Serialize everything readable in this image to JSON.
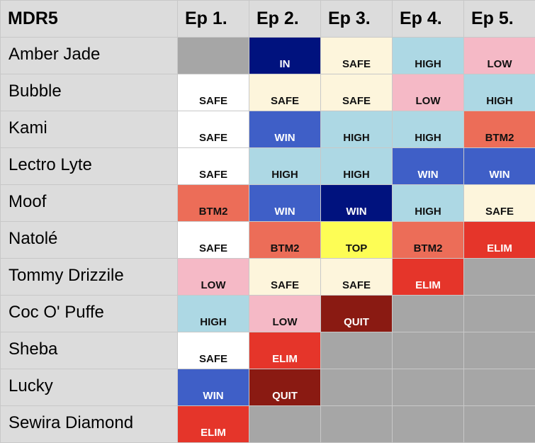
{
  "header": {
    "title": "MDR5",
    "episodes": [
      "Ep 1.",
      "Ep 2.",
      "Ep 3.",
      "Ep 4.",
      "Ep 5."
    ]
  },
  "rows": [
    {
      "name": "Amber Jade",
      "cells": [
        {
          "color": "#a6a6a6"
        },
        {
          "label": "IN",
          "color": "#00127e"
        },
        {
          "label": "SAFE",
          "color": "#fdf5dc"
        },
        {
          "label": "HIGH",
          "color": "#add8e4"
        },
        {
          "label": "LOW",
          "color": "#f5b9c6"
        }
      ]
    },
    {
      "name": "Bubble",
      "cells": [
        {
          "label": "SAFE",
          "color": "#ffffff"
        },
        {
          "label": "SAFE",
          "color": "#fdf5dc"
        },
        {
          "label": "SAFE",
          "color": "#fdf5dc"
        },
        {
          "label": "LOW",
          "color": "#f5b9c6"
        },
        {
          "label": "HIGH",
          "color": "#add8e4"
        }
      ]
    },
    {
      "name": "Kami",
      "cells": [
        {
          "label": "SAFE",
          "color": "#ffffff"
        },
        {
          "label": "WIN",
          "color": "#3f5fc7"
        },
        {
          "label": "HIGH",
          "color": "#add8e4"
        },
        {
          "label": "HIGH",
          "color": "#add8e4"
        },
        {
          "label": "BTM2",
          "color": "#ec6d58"
        }
      ]
    },
    {
      "name": "Lectro Lyte",
      "cells": [
        {
          "label": "SAFE",
          "color": "#ffffff"
        },
        {
          "label": "HIGH",
          "color": "#add8e4"
        },
        {
          "label": "HIGH",
          "color": "#add8e4"
        },
        {
          "label": "WIN",
          "color": "#3f5fc7"
        },
        {
          "label": "WIN",
          "color": "#3f5fc7"
        }
      ]
    },
    {
      "name": "Moof",
      "cells": [
        {
          "label": "BTM2",
          "color": "#ec6d58"
        },
        {
          "label": "WIN",
          "color": "#3f5fc7"
        },
        {
          "label": "WIN",
          "color": "#00127e"
        },
        {
          "label": "HIGH",
          "color": "#add8e4"
        },
        {
          "label": "SAFE",
          "color": "#fdf5dc"
        }
      ]
    },
    {
      "name": "Natolé",
      "cells": [
        {
          "label": "SAFE",
          "color": "#ffffff"
        },
        {
          "label": "BTM2",
          "color": "#ec6d58"
        },
        {
          "label": "TOP",
          "color": "#fdfd55"
        },
        {
          "label": "BTM2",
          "color": "#ec6d58"
        },
        {
          "label": "ELIM",
          "color": "#e5352a"
        }
      ]
    },
    {
      "name": "Tommy Drizzile",
      "cells": [
        {
          "label": "LOW",
          "color": "#f5b9c6"
        },
        {
          "label": "SAFE",
          "color": "#fdf5dc"
        },
        {
          "label": "SAFE",
          "color": "#fdf5dc"
        },
        {
          "label": "ELIM",
          "color": "#e5352a"
        },
        {
          "color": "#a6a6a6"
        }
      ]
    },
    {
      "name": "Coc O' Puffe",
      "cells": [
        {
          "label": "HIGH",
          "color": "#add8e4"
        },
        {
          "label": "LOW",
          "color": "#f5b9c6"
        },
        {
          "label": "QUIT",
          "color": "#8a1a12"
        },
        {
          "color": "#a6a6a6"
        },
        {
          "color": "#a6a6a6"
        }
      ]
    },
    {
      "name": "Sheba",
      "cells": [
        {
          "label": "SAFE",
          "color": "#ffffff"
        },
        {
          "label": "ELIM",
          "color": "#e5352a"
        },
        {
          "color": "#a6a6a6"
        },
        {
          "color": "#a6a6a6"
        },
        {
          "color": "#a6a6a6"
        }
      ]
    },
    {
      "name": "Lucky",
      "cells": [
        {
          "label": "WIN",
          "color": "#3f5fc7"
        },
        {
          "label": "QUIT",
          "color": "#8a1a12"
        },
        {
          "color": "#a6a6a6"
        },
        {
          "color": "#a6a6a6"
        },
        {
          "color": "#a6a6a6"
        }
      ]
    },
    {
      "name": "Sewira Diamond",
      "cells": [
        {
          "label": "ELIM",
          "color": "#e5352a"
        },
        {
          "color": "#a6a6a6"
        },
        {
          "color": "#a6a6a6"
        },
        {
          "color": "#a6a6a6"
        },
        {
          "color": "#a6a6a6"
        }
      ]
    }
  ]
}
